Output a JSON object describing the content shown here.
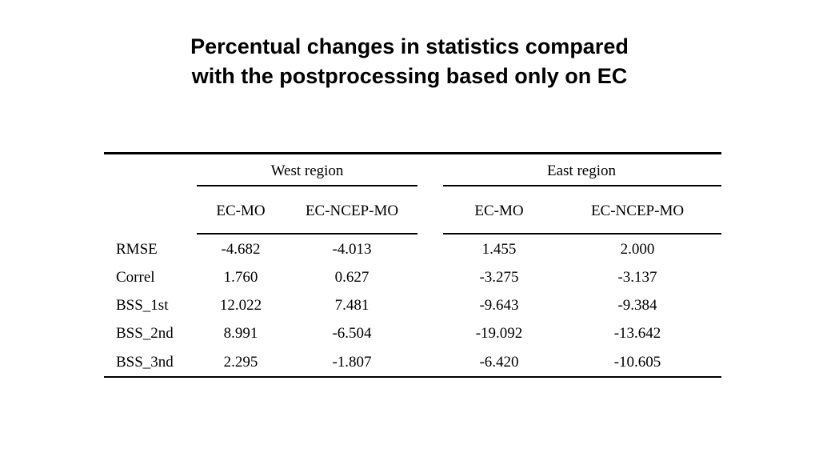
{
  "slide": {
    "title_line1": "Percentual changes in statistics compared",
    "title_line2": "with the postprocessing based only on EC"
  },
  "table": {
    "group_headers": [
      "West region",
      "East region"
    ],
    "sub_headers": [
      "EC-MO",
      "EC-NCEP-MO",
      "EC-MO",
      "EC-NCEP-MO"
    ],
    "rows": [
      {
        "label": "RMSE",
        "values": [
          "-4.682",
          "-4.013",
          "1.455",
          "2.000"
        ]
      },
      {
        "label": "Correl",
        "values": [
          "1.760",
          "0.627",
          "-3.275",
          "-3.137"
        ]
      },
      {
        "label": "BSS_1st",
        "values": [
          "12.022",
          "7.481",
          "-9.643",
          "-9.384"
        ]
      },
      {
        "label": "BSS_2nd",
        "values": [
          "8.991",
          "-6.504",
          "-19.092",
          "-13.642"
        ]
      },
      {
        "label": "BSS_3nd",
        "values": [
          "2.295",
          "-1.807",
          "-6.420",
          "-10.605"
        ]
      }
    ]
  }
}
